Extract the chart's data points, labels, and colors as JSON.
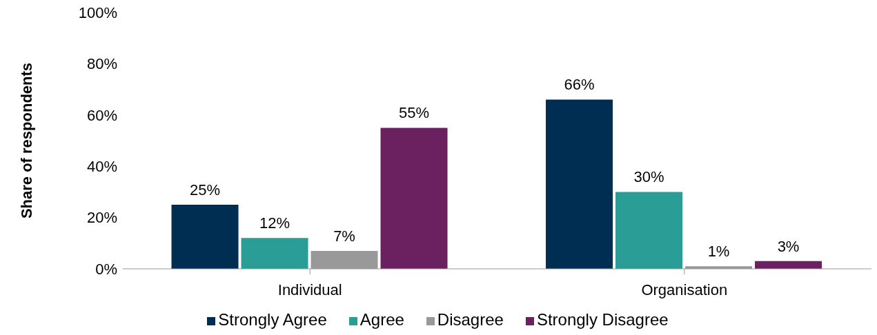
{
  "chart_data": {
    "type": "bar",
    "ylabel": "Share of respondents",
    "categories": [
      "Individual",
      "Organisation"
    ],
    "series": [
      {
        "name": "Strongly Agree",
        "color": "#002d52",
        "values": [
          25,
          66
        ],
        "value_labels": [
          "25%",
          "66%"
        ]
      },
      {
        "name": "Agree",
        "color": "#2a9d96",
        "values": [
          12,
          30
        ],
        "value_labels": [
          "12%",
          "30%"
        ]
      },
      {
        "name": "Disagree",
        "color": "#999999",
        "values": [
          7,
          1
        ],
        "value_labels": [
          "7%",
          "1%"
        ]
      },
      {
        "name": "Strongly Disagree",
        "color": "#6b2160",
        "values": [
          55,
          3
        ],
        "value_labels": [
          "55%",
          "3%"
        ]
      }
    ],
    "ylim": [
      0,
      100
    ],
    "yticks": [
      {
        "value": 0,
        "label": "0%"
      },
      {
        "value": 20,
        "label": "20%"
      },
      {
        "value": 40,
        "label": "40%"
      },
      {
        "value": 60,
        "label": "60%"
      },
      {
        "value": 80,
        "label": "80%"
      },
      {
        "value": 100,
        "label": "100%"
      }
    ],
    "grid": false,
    "legend": "bottom"
  }
}
